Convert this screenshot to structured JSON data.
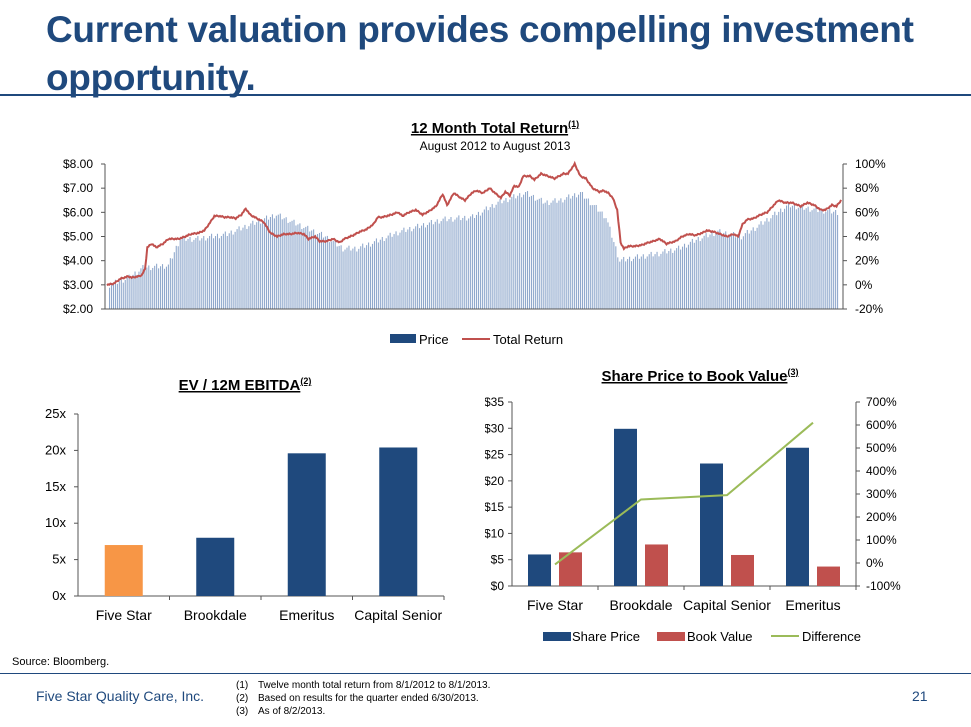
{
  "title": "Current valuation provides compelling investment opportunity.",
  "colors": {
    "navy": "#1F497D",
    "orange": "#F79646",
    "red": "#C0504D",
    "green": "#9BBB59",
    "bar_light": "#8FA8CC"
  },
  "chart_data": [
    {
      "type": "bar+line",
      "title": "12 Month Total Return",
      "title_sup": "(1)",
      "subtitle": "August 2012 to August 2013",
      "y_left_ticks": [
        "$8.00",
        "$7.00",
        "$6.00",
        "$5.00",
        "$4.00",
        "$3.00",
        "$2.00"
      ],
      "y_right_ticks": [
        "100%",
        "80%",
        "60%",
        "40%",
        "20%",
        "0%",
        "-20%"
      ],
      "ylim_left": [
        2,
        8
      ],
      "ylim_right": [
        -20,
        100
      ],
      "legend": [
        "Price",
        "Total Return"
      ],
      "price_keypoints": [
        [
          0,
          3.0
        ],
        [
          10,
          3.3
        ],
        [
          17,
          3.7
        ],
        [
          30,
          3.8
        ],
        [
          36,
          4.9
        ],
        [
          45,
          4.9
        ],
        [
          60,
          5.1
        ],
        [
          72,
          5.5
        ],
        [
          85,
          5.9
        ],
        [
          96,
          5.5
        ],
        [
          110,
          5.0
        ],
        [
          119,
          4.5
        ],
        [
          126,
          4.5
        ],
        [
          133,
          4.7
        ],
        [
          148,
          5.2
        ],
        [
          170,
          5.7
        ],
        [
          185,
          5.8
        ],
        [
          198,
          6.4
        ],
        [
          212,
          6.8
        ],
        [
          222,
          6.4
        ],
        [
          230,
          6.5
        ],
        [
          240,
          6.8
        ],
        [
          253,
          5.8
        ],
        [
          260,
          4.0
        ],
        [
          266,
          4.1
        ],
        [
          280,
          4.3
        ],
        [
          290,
          4.5
        ],
        [
          300,
          4.9
        ],
        [
          310,
          5.2
        ],
        [
          322,
          5.0
        ],
        [
          330,
          5.4
        ],
        [
          346,
          6.3
        ],
        [
          360,
          6.1
        ],
        [
          372,
          6.0
        ]
      ],
      "return_keypoints": [
        [
          0,
          0
        ],
        [
          6,
          1
        ],
        [
          12,
          5
        ],
        [
          19,
          7
        ],
        [
          22,
          6
        ],
        [
          28,
          7
        ],
        [
          31,
          8
        ],
        [
          34,
          13
        ],
        [
          36,
          31
        ],
        [
          40,
          34
        ],
        [
          44,
          31
        ],
        [
          50,
          34
        ],
        [
          55,
          38
        ],
        [
          60,
          38
        ],
        [
          64,
          38
        ],
        [
          70,
          40
        ],
        [
          75,
          42
        ],
        [
          82,
          43
        ],
        [
          87,
          45
        ],
        [
          91,
          50
        ],
        [
          96,
          57
        ],
        [
          100,
          57
        ],
        [
          105,
          56
        ],
        [
          110,
          56
        ],
        [
          115,
          55
        ],
        [
          120,
          58
        ],
        [
          124,
          63
        ],
        [
          128,
          58
        ],
        [
          134,
          55
        ],
        [
          140,
          52
        ],
        [
          146,
          43
        ],
        [
          152,
          40
        ],
        [
          158,
          42
        ],
        [
          164,
          42
        ],
        [
          170,
          43
        ],
        [
          176,
          42
        ],
        [
          180,
          38
        ],
        [
          186,
          40
        ],
        [
          190,
          36
        ],
        [
          196,
          36
        ],
        [
          202,
          38
        ],
        [
          208,
          35
        ],
        [
          212,
          38
        ],
        [
          220,
          41
        ],
        [
          226,
          44
        ],
        [
          232,
          46
        ],
        [
          238,
          50
        ],
        [
          242,
          56
        ],
        [
          246,
          56
        ],
        [
          254,
          58
        ],
        [
          260,
          60
        ],
        [
          264,
          57
        ],
        [
          270,
          60
        ],
        [
          276,
          62
        ],
        [
          282,
          58
        ],
        [
          288,
          61
        ],
        [
          294,
          65
        ],
        [
          300,
          75
        ],
        [
          304,
          66
        ],
        [
          310,
          76
        ],
        [
          316,
          72
        ],
        [
          320,
          70
        ],
        [
          326,
          76
        ],
        [
          330,
          78
        ],
        [
          336,
          76
        ],
        [
          342,
          80
        ],
        [
          348,
          75
        ],
        [
          352,
          72
        ],
        [
          356,
          77
        ],
        [
          360,
          74
        ],
        [
          364,
          82
        ],
        [
          368,
          81
        ],
        [
          372,
          90
        ],
        [
          378,
          90
        ],
        [
          382,
          87
        ],
        [
          388,
          92
        ],
        [
          394,
          90
        ],
        [
          400,
          88
        ],
        [
          408,
          92
        ],
        [
          412,
          92
        ],
        [
          418,
          100
        ],
        [
          423,
          90
        ],
        [
          428,
          88
        ],
        [
          434,
          80
        ],
        [
          440,
          77
        ],
        [
          444,
          78
        ],
        [
          448,
          76
        ],
        [
          452,
          72
        ],
        [
          456,
          62
        ],
        [
          459,
          35
        ],
        [
          462,
          30
        ],
        [
          466,
          32
        ],
        [
          472,
          32
        ],
        [
          478,
          33
        ],
        [
          484,
          35
        ],
        [
          488,
          36
        ],
        [
          494,
          38
        ],
        [
          500,
          34
        ],
        [
          508,
          36
        ],
        [
          514,
          40
        ],
        [
          520,
          42
        ],
        [
          526,
          41
        ],
        [
          532,
          43
        ],
        [
          536,
          45
        ],
        [
          542,
          44
        ],
        [
          548,
          42
        ],
        [
          554,
          40
        ],
        [
          560,
          42
        ],
        [
          564,
          40
        ],
        [
          568,
          50
        ],
        [
          572,
          54
        ],
        [
          578,
          55
        ],
        [
          584,
          58
        ],
        [
          590,
          60
        ],
        [
          594,
          64
        ],
        [
          600,
          70
        ],
        [
          606,
          68
        ],
        [
          612,
          68
        ],
        [
          620,
          65
        ],
        [
          626,
          68
        ],
        [
          632,
          66
        ],
        [
          638,
          62
        ],
        [
          642,
          62
        ],
        [
          648,
          66
        ],
        [
          652,
          65
        ],
        [
          656,
          70
        ]
      ]
    },
    {
      "type": "bar",
      "title": "EV / 12M EBITDA",
      "title_sup": "(2)",
      "categories": [
        "Five Star",
        "Brookdale",
        "Emeritus",
        "Capital Senior"
      ],
      "values": [
        7.0,
        8.0,
        19.6,
        20.4
      ],
      "bar_colors": [
        "#F79646",
        "#1F497D",
        "#1F497D",
        "#1F497D"
      ],
      "y_ticks": [
        "25x",
        "20x",
        "15x",
        "10x",
        "5x",
        "0x"
      ],
      "ylim": [
        0,
        25
      ]
    },
    {
      "type": "bar+line",
      "title": "Share Price to Book Value",
      "title_sup": "(3)",
      "categories": [
        "Five Star",
        "Brookdale",
        "Capital Senior",
        "Emeritus"
      ],
      "series": [
        {
          "name": "Share Price",
          "values": [
            6.0,
            29.9,
            23.3,
            26.3
          ]
        },
        {
          "name": "Book Value",
          "values": [
            6.4,
            7.9,
            5.9,
            3.7
          ]
        },
        {
          "name": "Difference",
          "values": [
            -6,
            276,
            295,
            610
          ]
        }
      ],
      "y_left_ticks": [
        "$35",
        "$30",
        "$25",
        "$20",
        "$15",
        "$10",
        "$5",
        "$0"
      ],
      "y_right_ticks": [
        "700%",
        "600%",
        "500%",
        "400%",
        "300%",
        "200%",
        "100%",
        "0%",
        "-100%"
      ],
      "ylim_left": [
        0,
        35
      ],
      "ylim_right": [
        -100,
        700
      ]
    }
  ],
  "footer": {
    "source": "Source: Bloomberg.",
    "company": "Five Star Quality Care, Inc.",
    "page": "21",
    "notes": [
      {
        "num": "(1)",
        "text": "Twelve month total return from 8/1/2012 to 8/1/2013."
      },
      {
        "num": "(2)",
        "text": "Based on results for the quarter ended 6/30/2013."
      },
      {
        "num": "(3)",
        "text": "As of 8/2/2013."
      }
    ]
  }
}
